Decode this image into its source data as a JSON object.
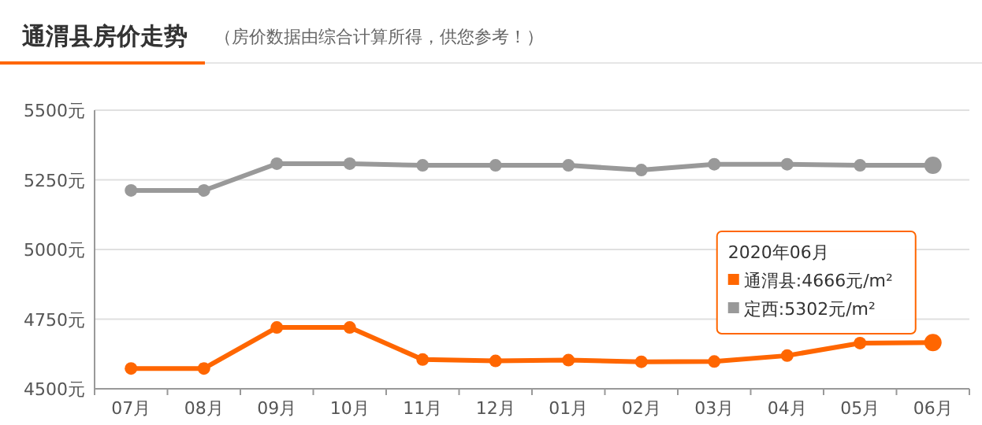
{
  "chart_data": {
    "type": "line",
    "title": "通渭县房价走势",
    "subtitle": "（房价数据由综合计算所得，供您参考！）",
    "categories": [
      "07月",
      "08月",
      "09月",
      "10月",
      "11月",
      "12月",
      "01月",
      "02月",
      "03月",
      "04月",
      "05月",
      "06月"
    ],
    "series": [
      {
        "name": "通渭县",
        "color": "#ff6600",
        "values": [
          4573,
          4573,
          4720,
          4720,
          4605,
          4600,
          4603,
          4597,
          4598,
          4619,
          4664,
          4666
        ]
      },
      {
        "name": "定西",
        "color": "#999999",
        "values": [
          5212,
          5212,
          5308,
          5308,
          5302,
          5302,
          5302,
          5285,
          5306,
          5306,
          5302,
          5302
        ]
      }
    ],
    "ylim": [
      4500,
      5500
    ],
    "yticks": [
      {
        "value": 4500,
        "label": "4500元"
      },
      {
        "value": 4750,
        "label": "4750元"
      },
      {
        "value": 5000,
        "label": "5000元"
      },
      {
        "value": 5250,
        "label": "5250元"
      },
      {
        "value": 5500,
        "label": "5500元"
      }
    ],
    "grid": "y",
    "marker": "circle",
    "legend": "right",
    "legend_title": "2020年06月",
    "annotations": [
      ":4666元/m²",
      ":5302元/m²"
    ]
  }
}
